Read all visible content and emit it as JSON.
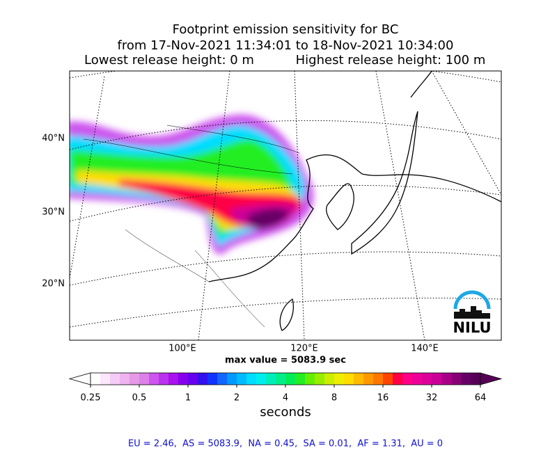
{
  "title": {
    "line1": "Footprint emission sensitivity for BC",
    "line2": "from 17-Nov-2021 11:34:01 to 18-Nov-2021 10:34:00",
    "lowest": "Lowest release height: 0 m",
    "highest": "Highest release height: 100 m"
  },
  "map": {
    "lat_labels": [
      "40°N",
      "30°N",
      "20°N"
    ],
    "lon_labels": [
      "100°E",
      "120°E",
      "140°E"
    ],
    "logo": "NILU",
    "max_value": "max value = 5083.9 sec"
  },
  "colorbar": {
    "log_scale": true,
    "lim": [
      0.25,
      64
    ],
    "ticks": [
      0.25,
      0.5,
      1,
      2,
      4,
      8,
      16,
      32,
      64
    ],
    "label": "seconds",
    "colors": [
      "#ffffff",
      "#fbe6fb",
      "#f5ccf5",
      "#efb3ef",
      "#e699e6",
      "#dd80ea",
      "#cc55ee",
      "#bb33ee",
      "#aa11ee",
      "#8800ee",
      "#6600ee",
      "#3311ee",
      "#1133ff",
      "#1166ff",
      "#0099ff",
      "#00bbff",
      "#00ddff",
      "#00eeee",
      "#00eebb",
      "#00ee88",
      "#00ee55",
      "#22ee22",
      "#66ee00",
      "#99ee00",
      "#ccee00",
      "#eeee00",
      "#ffdd00",
      "#ffbb00",
      "#ff9900",
      "#ff7700",
      "#ff4400",
      "#ff0044",
      "#ff0088",
      "#ee0099",
      "#dd0099",
      "#cc0099",
      "#aa0088",
      "#880077",
      "#660066",
      "#550055"
    ]
  },
  "footer": "EU = 2.46,  AS = 5083.9,  NA = 0.45,  SA = 0.01,  AF = 1.31,  AU = 0"
}
